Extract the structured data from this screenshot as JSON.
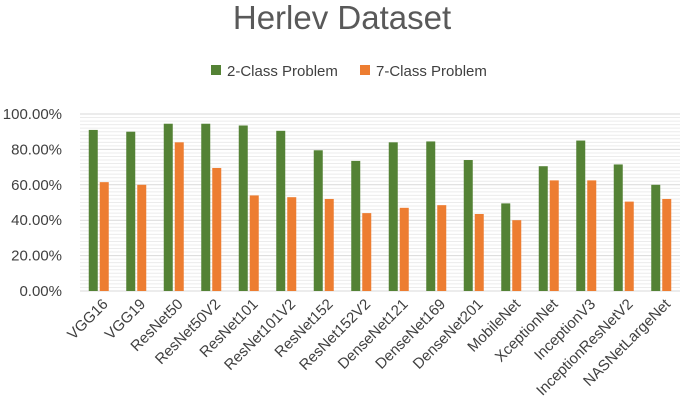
{
  "chart_data": {
    "type": "bar",
    "title": "Herlev Dataset",
    "categories": [
      "VGG16",
      "VGG19",
      "ResNet50",
      "ResNet50V2",
      "ResNet101",
      "ResNet101V2",
      "ResNet152",
      "ResNet152V2",
      "DenseNet121",
      "DenseNet169",
      "DenseNet201",
      "MobileNet",
      "XceptionNet",
      "InceptionV3",
      "InceptionResNetV2",
      "NASNetLargeNet"
    ],
    "series": [
      {
        "name": "2-Class Problem",
        "color": "#548235",
        "values": [
          91,
          90,
          94.5,
          94.5,
          93.5,
          90.5,
          79.5,
          73.5,
          84,
          84.5,
          74,
          49.5,
          70.5,
          85,
          71.5,
          60
        ]
      },
      {
        "name": "7-Class Problem",
        "color": "#ed7d31",
        "values": [
          61.5,
          60,
          84,
          69.5,
          54,
          53,
          52,
          44,
          47,
          48.5,
          43.5,
          40,
          62.5,
          62.5,
          50.5,
          52
        ]
      }
    ],
    "ylim": [
      0,
      100
    ],
    "yticks": [
      "0.00%",
      "20.00%",
      "40.00%",
      "60.00%",
      "80.00%",
      "100.00%"
    ],
    "legend": "top-center",
    "grid": true
  }
}
